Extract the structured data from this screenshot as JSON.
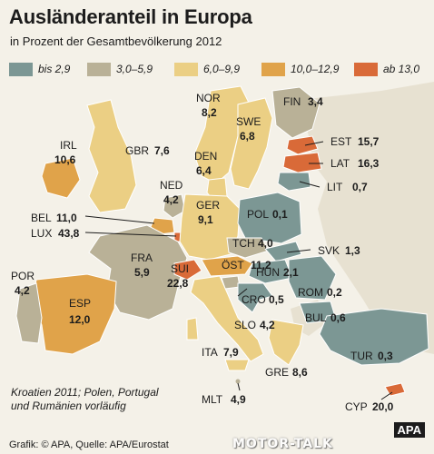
{
  "title": "Ausländeranteil in Europa",
  "subtitle": "in Prozent der Gesamtbevölkerung 2012",
  "legend": [
    {
      "label": "bis 2,9",
      "color": "#7c9794"
    },
    {
      "label": "3,0–5,9",
      "color": "#b9b197"
    },
    {
      "label": "6,0–9,9",
      "color": "#ebcf84"
    },
    {
      "label": "10,0–12,9",
      "color": "#e0a34a"
    },
    {
      "label": "ab 13,0",
      "color": "#d96a38"
    }
  ],
  "colors": {
    "sea": "#f4f1e8",
    "outside": "#e7e1d1"
  },
  "countries": {
    "NOR": {
      "code": "NOR",
      "value": "8,2"
    },
    "FIN": {
      "code": "FIN",
      "value": "3,4"
    },
    "SWE": {
      "code": "SWE",
      "value": "6,8"
    },
    "EST": {
      "code": "EST",
      "value": "15,7"
    },
    "LAT": {
      "code": "LAT",
      "value": "16,3"
    },
    "LIT": {
      "code": "LIT",
      "value": "0,7"
    },
    "IRL": {
      "code": "IRL",
      "value": "10,6"
    },
    "GBR": {
      "code": "GBR",
      "value": "7,6"
    },
    "DEN": {
      "code": "DEN",
      "value": "6,4"
    },
    "NED": {
      "code": "NED",
      "value": "4,2"
    },
    "GER": {
      "code": "GER",
      "value": "9,1"
    },
    "POL": {
      "code": "POL",
      "value": "0,1"
    },
    "BEL": {
      "code": "BEL",
      "value": "11,0"
    },
    "LUX": {
      "code": "LUX",
      "value": "43,8"
    },
    "TCH": {
      "code": "TCH",
      "value": "4,0"
    },
    "SVK": {
      "code": "SVK",
      "value": "1,3"
    },
    "FRA": {
      "code": "FRA",
      "value": "5,9"
    },
    "OST": {
      "code": "ÖST",
      "value": "11,2"
    },
    "SUI": {
      "code": "SUI",
      "value": "22,8"
    },
    "HUN": {
      "code": "HUN",
      "value": "2,1"
    },
    "POR": {
      "code": "POR",
      "value": "4,2"
    },
    "CRO": {
      "code": "CRO",
      "value": "0,5"
    },
    "ROM": {
      "code": "ROM",
      "value": "0,2"
    },
    "ESP": {
      "code": "ESP",
      "value": "12,0"
    },
    "SLO": {
      "code": "SLO",
      "value": "4,2"
    },
    "BUL": {
      "code": "BUL",
      "value": "0,6"
    },
    "ITA": {
      "code": "ITA",
      "value": "7,9"
    },
    "TUR": {
      "code": "TUR",
      "value": "0,3"
    },
    "GRE": {
      "code": "GRE",
      "value": "8,6"
    },
    "MLT": {
      "code": "MLT",
      "value": "4,9"
    },
    "CYP": {
      "code": "CYP",
      "value": "20,0"
    }
  },
  "note": [
    "Kroatien 2011; Polen, Portugal",
    "und Rumänien vorläufig"
  ],
  "credit": "Grafik: © APA, Quelle: APA/Eurostat",
  "logo": "APA",
  "watermark": "MOTOR-TALK"
}
